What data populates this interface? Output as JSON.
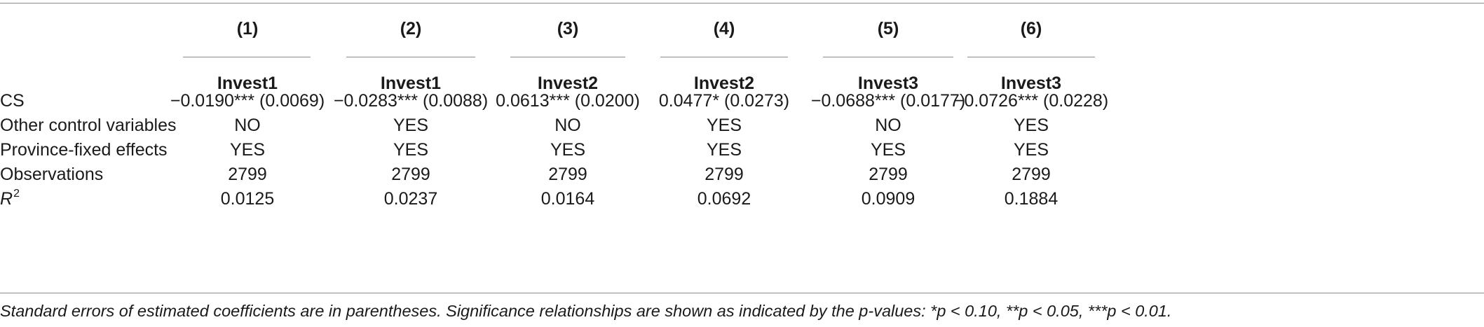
{
  "table": {
    "column_numbers": [
      "(1)",
      "(2)",
      "(3)",
      "(4)",
      "(5)",
      "(6)"
    ],
    "dependent_variables": [
      "Invest1",
      "Invest1",
      "Invest2",
      "Invest2",
      "Invest3",
      "Invest3"
    ],
    "rows": [
      {
        "label": "CS",
        "values": [
          "−0.0190*** (0.0069)",
          "−0.0283*** (0.0088)",
          "0.0613*** (0.0200)",
          "0.0477* (0.0273)",
          "−0.0688*** (0.0177)",
          "−0.0726*** (0.0228)"
        ]
      },
      {
        "label": "Other control variables",
        "values": [
          "NO",
          "YES",
          "NO",
          "YES",
          "NO",
          "YES"
        ]
      },
      {
        "label": "Province-fixed effects",
        "values": [
          "YES",
          "YES",
          "YES",
          "YES",
          "YES",
          "YES"
        ]
      },
      {
        "label": "Observations",
        "values": [
          "2799",
          "2799",
          "2799",
          "2799",
          "2799",
          "2799"
        ]
      },
      {
        "label_base": "R",
        "label_superscript": "2",
        "values": [
          "0.0125",
          "0.0237",
          "0.0164",
          "0.0692",
          "0.0909",
          "0.1884"
        ]
      }
    ],
    "note": "Standard errors of estimated coefficients are in parentheses. Significance relationships are shown as indicated by the p-values: *p < 0.10, **p < 0.05, ***p < 0.01."
  }
}
